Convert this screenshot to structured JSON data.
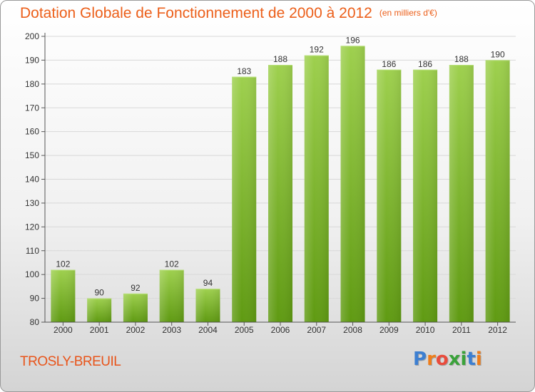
{
  "title": "Dotation Globale de Fonctionnement de 2000 à 2012",
  "unit_note": "(en milliers d'€)",
  "commune": "TROSLY-BREUIL",
  "logo": {
    "letters": [
      "P",
      "r",
      "o",
      "x",
      "i",
      "t",
      "i"
    ],
    "colors": [
      "#3d7fd1",
      "#ef7d1a",
      "#e94b3c",
      "#3aa23a",
      "#3aa23a",
      "#3d7fd1",
      "#ef7d1a"
    ]
  },
  "colors": {
    "bar_top": "#9ed04e",
    "bar_bottom": "#5f9a12",
    "axis": "#555555",
    "grid": "#d8d8d8"
  },
  "chart_data": {
    "type": "bar",
    "title": "Dotation Globale de Fonctionnement de 2000 à 2012",
    "subtitle": "(en milliers d'€)",
    "categories": [
      "2000",
      "2001",
      "2002",
      "2003",
      "2004",
      "2005",
      "2006",
      "2007",
      "2008",
      "2009",
      "2010",
      "2011",
      "2012"
    ],
    "values": [
      102,
      90,
      92,
      102,
      94,
      183,
      188,
      192,
      196,
      186,
      186,
      188,
      190
    ],
    "ylim": [
      80,
      200
    ],
    "yticks": [
      80,
      90,
      100,
      110,
      120,
      130,
      140,
      150,
      160,
      170,
      180,
      190,
      200
    ],
    "xlabel": "",
    "ylabel": "",
    "grid": true,
    "legend": "none"
  }
}
